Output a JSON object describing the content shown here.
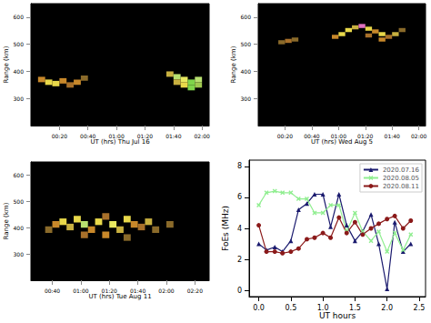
{
  "chart_data": [
    {
      "type": "heatmap",
      "x_label": "UT (hrs) Thu Jul 16",
      "y_label": "Range (km)",
      "xlim": [
        0,
        125
      ],
      "xticks": [
        {
          "value": 20,
          "label": "00:20"
        },
        {
          "value": 40,
          "label": "00:40"
        },
        {
          "value": 60,
          "label": "01:00"
        },
        {
          "value": 80,
          "label": "01:20"
        },
        {
          "value": 100,
          "label": "01:40"
        },
        {
          "value": 120,
          "label": "02:00"
        }
      ],
      "ylim": [
        200,
        650
      ],
      "yticks": [
        300,
        400,
        500,
        600
      ],
      "cell_size": [
        5,
        20
      ],
      "cells": [
        [
          5,
          360
        ],
        [
          10,
          350
        ],
        [
          15,
          345
        ],
        [
          20,
          355
        ],
        [
          25,
          340
        ],
        [
          30,
          350
        ],
        [
          35,
          365
        ],
        [
          95,
          380
        ],
        [
          100,
          370
        ],
        [
          105,
          360
        ],
        [
          110,
          350
        ],
        [
          115,
          360
        ],
        [
          105,
          340
        ],
        [
          110,
          330
        ],
        [
          100,
          350
        ],
        [
          115,
          340
        ]
      ],
      "colors": [
        "#c8882a",
        "#e8d84a",
        "#e8d84a",
        "#c8882a",
        "#a8702a",
        "#c8882a",
        "#8a6a2a",
        "#c8b040",
        "#b8e070",
        "#e8e860",
        "#7fd64a",
        "#b8e070",
        "#e8d84a",
        "#7fd64a",
        "#c8b040",
        "#a0c850"
      ]
    },
    {
      "type": "heatmap",
      "x_label": "UT (hrs) Wed Aug 5",
      "y_label": "Range (km)",
      "xlim": [
        0,
        125
      ],
      "xticks": [
        {
          "value": 20,
          "label": "00:20"
        },
        {
          "value": 40,
          "label": "00:40"
        },
        {
          "value": 60,
          "label": "01:00"
        },
        {
          "value": 80,
          "label": "01:20"
        },
        {
          "value": 100,
          "label": "01:40"
        },
        {
          "value": 120,
          "label": "02:00"
        }
      ],
      "ylim": [
        200,
        650
      ],
      "yticks": [
        300,
        400,
        500,
        600
      ],
      "cell_size": [
        5,
        15
      ],
      "cells": [
        [
          15,
          500
        ],
        [
          20,
          505
        ],
        [
          25,
          510
        ],
        [
          55,
          520
        ],
        [
          60,
          530
        ],
        [
          65,
          545
        ],
        [
          70,
          555
        ],
        [
          75,
          560
        ],
        [
          80,
          550
        ],
        [
          85,
          540
        ],
        [
          90,
          530
        ],
        [
          95,
          520
        ],
        [
          100,
          530
        ],
        [
          105,
          545
        ],
        [
          80,
          525
        ],
        [
          90,
          510
        ]
      ],
      "colors": [
        "#8a6a2a",
        "#a8702a",
        "#8a6a2a",
        "#c8882a",
        "#e8d84a",
        "#e8d84a",
        "#c8b040",
        "#e070c0",
        "#e8d84a",
        "#c8882a",
        "#e8d84a",
        "#a8702a",
        "#c8b040",
        "#8a6a2a",
        "#a8702a",
        "#c8882a"
      ]
    },
    {
      "type": "heatmap",
      "x_label": "UT (hrs) Tue Aug 11",
      "y_label": "Range (km)",
      "xlim": [
        25,
        150
      ],
      "xticks": [
        {
          "value": 40,
          "label": "00:40"
        },
        {
          "value": 60,
          "label": "01:00"
        },
        {
          "value": 80,
          "label": "01:20"
        },
        {
          "value": 100,
          "label": "01:40"
        },
        {
          "value": 120,
          "label": "02:00"
        },
        {
          "value": 140,
          "label": "02:20"
        }
      ],
      "ylim": [
        200,
        650
      ],
      "yticks": [
        300,
        400,
        500,
        600
      ],
      "cell_size": [
        5,
        25
      ],
      "cells": [
        [
          40,
          400
        ],
        [
          45,
          410
        ],
        [
          50,
          390
        ],
        [
          55,
          420
        ],
        [
          60,
          400
        ],
        [
          65,
          380
        ],
        [
          70,
          410
        ],
        [
          75,
          430
        ],
        [
          80,
          400
        ],
        [
          85,
          380
        ],
        [
          90,
          420
        ],
        [
          95,
          400
        ],
        [
          100,
          390
        ],
        [
          105,
          410
        ],
        [
          110,
          380
        ],
        [
          60,
          360
        ],
        [
          75,
          360
        ],
        [
          90,
          350
        ],
        [
          35,
          380
        ],
        [
          120,
          400
        ]
      ],
      "colors": [
        "#c8882a",
        "#e8d84a",
        "#c8b040",
        "#e8d84a",
        "#b8e070",
        "#c8882a",
        "#e8d84a",
        "#a8702a",
        "#e8e860",
        "#c8b040",
        "#e8d84a",
        "#c8882a",
        "#a8702a",
        "#c8b040",
        "#8a6a2a",
        "#a8702a",
        "#c8882a",
        "#8a6a2a",
        "#8a6a2a",
        "#8a6a2a"
      ]
    },
    {
      "type": "line",
      "x_label": "UT hours",
      "y_label": "FoEs (MHz)",
      "xlim": [
        -0.15,
        2.6
      ],
      "xticks": [
        {
          "value": 0,
          "label": "0.0"
        },
        0.5,
        {
          "value": 1,
          "label": "1.0"
        },
        1.5,
        {
          "value": 2,
          "label": "2.0"
        },
        2.5
      ],
      "ylim": [
        -0.4,
        8.4
      ],
      "yticks": [
        0,
        2,
        4,
        6,
        8
      ],
      "legend": "upper right",
      "x": [
        0,
        0.12,
        0.25,
        0.37,
        0.5,
        0.62,
        0.75,
        0.87,
        1.0,
        1.12,
        1.25,
        1.37,
        1.5,
        1.62,
        1.75,
        1.87,
        2.0,
        2.12,
        2.25,
        2.37
      ],
      "series": [
        {
          "name": "2020.07.16",
          "color": "#1a1a6e",
          "marker": "triangle",
          "values": [
            3.0,
            2.6,
            2.8,
            2.5,
            3.2,
            5.2,
            5.6,
            6.2,
            6.2,
            4.1,
            6.2,
            4.2,
            3.2,
            3.8,
            4.9,
            3.0,
            0.1,
            4.4,
            2.5,
            3.0
          ]
        },
        {
          "name": "2020.08.05",
          "color": "#90ee90",
          "marker": "x",
          "values": [
            5.5,
            6.3,
            6.4,
            6.3,
            6.3,
            5.9,
            5.9,
            5.0,
            5.0,
            5.5,
            5.5,
            3.8,
            5.0,
            3.8,
            3.2,
            3.8,
            2.5,
            3.7,
            2.6,
            3.6
          ]
        },
        {
          "name": "2020.08.11",
          "color": "#8b1a1a",
          "marker": "circle",
          "values": [
            4.2,
            2.5,
            2.5,
            2.4,
            2.5,
            2.7,
            3.3,
            3.4,
            3.7,
            3.4,
            4.7,
            3.7,
            4.4,
            3.6,
            4.0,
            4.3,
            4.6,
            4.8,
            4.0,
            4.5
          ]
        }
      ]
    }
  ]
}
